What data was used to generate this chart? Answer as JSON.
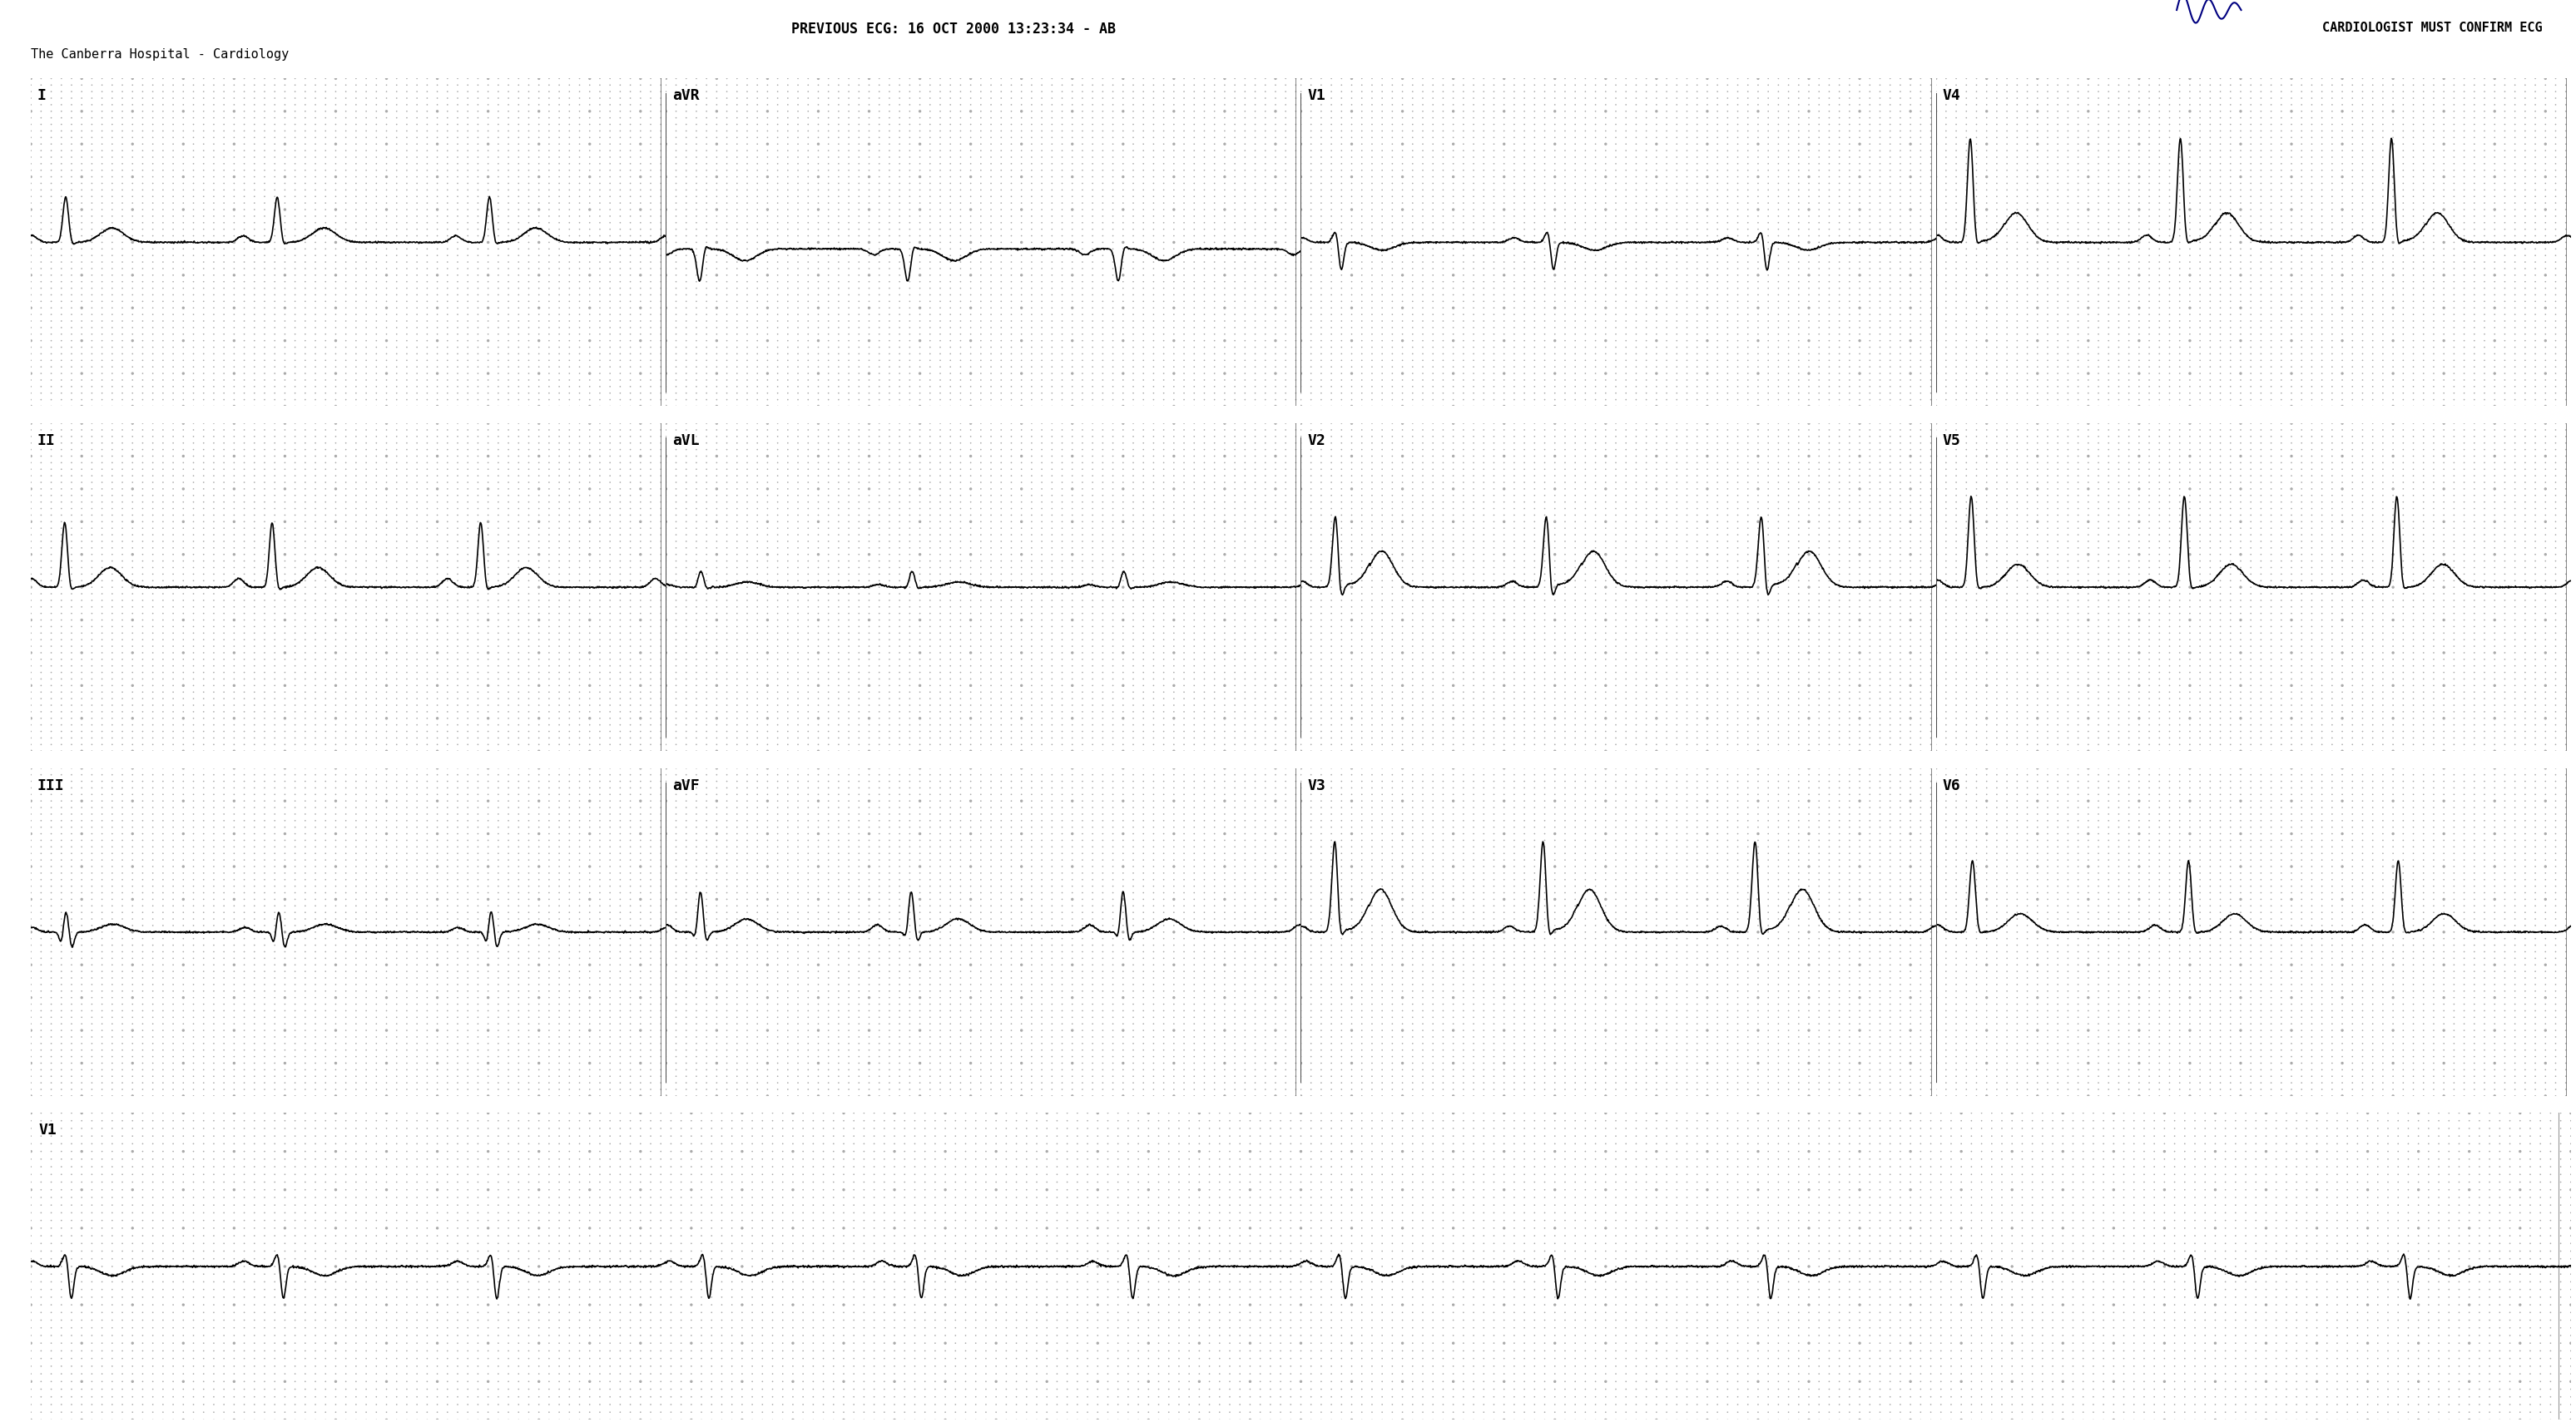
{
  "title_line1": "PREVIOUS ECG: 16 OCT 2000 13:23:34 - AB",
  "title_line2": "The Canberra Hospital - Cardiology",
  "title_right": "CARDIOLOGIST MUST CONFIRM ECG",
  "bg_color": "#ffffff",
  "grid_dot_color": "#aaaaaa",
  "trace_color": "#000000",
  "text_color": "#000000",
  "row_leads": [
    [
      "I",
      "aVR",
      "V1",
      "V4"
    ],
    [
      "II",
      "aVL",
      "V2",
      "V5"
    ],
    [
      "III",
      "aVF",
      "V3",
      "V6"
    ]
  ],
  "rhythm_lead": "V1",
  "hr": 72,
  "sample_rate": 500,
  "duration_col": 2.5,
  "duration_rhythm": 10.0,
  "lead_configs": {
    "I": {
      "r_amp": 0.7,
      "p_amp": 0.1,
      "t_amp": 0.22,
      "q_depth": -0.03,
      "s_depth": -0.07,
      "st_elev": 0.0,
      "has_q": true,
      "baseline": 0.0
    },
    "II": {
      "r_amp": 1.0,
      "p_amp": 0.13,
      "t_amp": 0.3,
      "q_depth": -0.04,
      "s_depth": -0.1,
      "st_elev": 0.0,
      "has_q": true,
      "baseline": 0.0
    },
    "III": {
      "r_amp": 0.35,
      "p_amp": 0.07,
      "t_amp": 0.12,
      "q_depth": -0.22,
      "s_depth": -0.28,
      "st_elev": 0.0,
      "has_q": true,
      "baseline": 0.0
    },
    "aVR": {
      "r_amp": -0.5,
      "p_amp": -0.09,
      "t_amp": -0.18,
      "q_depth": 0.04,
      "s_depth": 0.07,
      "st_elev": 0.0,
      "has_q": false,
      "baseline": -0.1
    },
    "aVL": {
      "r_amp": 0.25,
      "p_amp": 0.04,
      "t_amp": 0.08,
      "q_depth": -0.04,
      "s_depth": -0.04,
      "st_elev": 0.0,
      "has_q": true,
      "baseline": 0.0
    },
    "aVF": {
      "r_amp": 0.65,
      "p_amp": 0.11,
      "t_amp": 0.2,
      "q_depth": -0.16,
      "s_depth": -0.2,
      "st_elev": 0.0,
      "has_q": true,
      "baseline": 0.0
    },
    "V1": {
      "r_amp": 0.18,
      "p_amp": 0.07,
      "t_amp": -0.12,
      "q_depth": -0.04,
      "s_depth": -0.45,
      "st_elev": 0.0,
      "has_q": false,
      "baseline": 0.0
    },
    "V2": {
      "r_amp": 1.1,
      "p_amp": 0.09,
      "t_amp": 0.55,
      "q_depth": -0.04,
      "s_depth": -0.28,
      "st_elev": 0.04,
      "has_q": false,
      "baseline": 0.0
    },
    "V3": {
      "r_amp": 1.4,
      "p_amp": 0.09,
      "t_amp": 0.65,
      "q_depth": -0.04,
      "s_depth": -0.18,
      "st_elev": 0.03,
      "has_q": false,
      "baseline": 0.0
    },
    "V4": {
      "r_amp": 1.6,
      "p_amp": 0.11,
      "t_amp": 0.45,
      "q_depth": -0.04,
      "s_depth": -0.13,
      "st_elev": 0.02,
      "has_q": true,
      "baseline": 0.0
    },
    "V5": {
      "r_amp": 1.4,
      "p_amp": 0.11,
      "t_amp": 0.35,
      "q_depth": -0.04,
      "s_depth": -0.09,
      "st_elev": 0.0,
      "has_q": true,
      "baseline": 0.0
    },
    "V6": {
      "r_amp": 1.1,
      "p_amp": 0.11,
      "t_amp": 0.28,
      "q_depth": -0.04,
      "s_depth": -0.07,
      "st_elev": 0.0,
      "has_q": true,
      "baseline": 0.0
    }
  }
}
